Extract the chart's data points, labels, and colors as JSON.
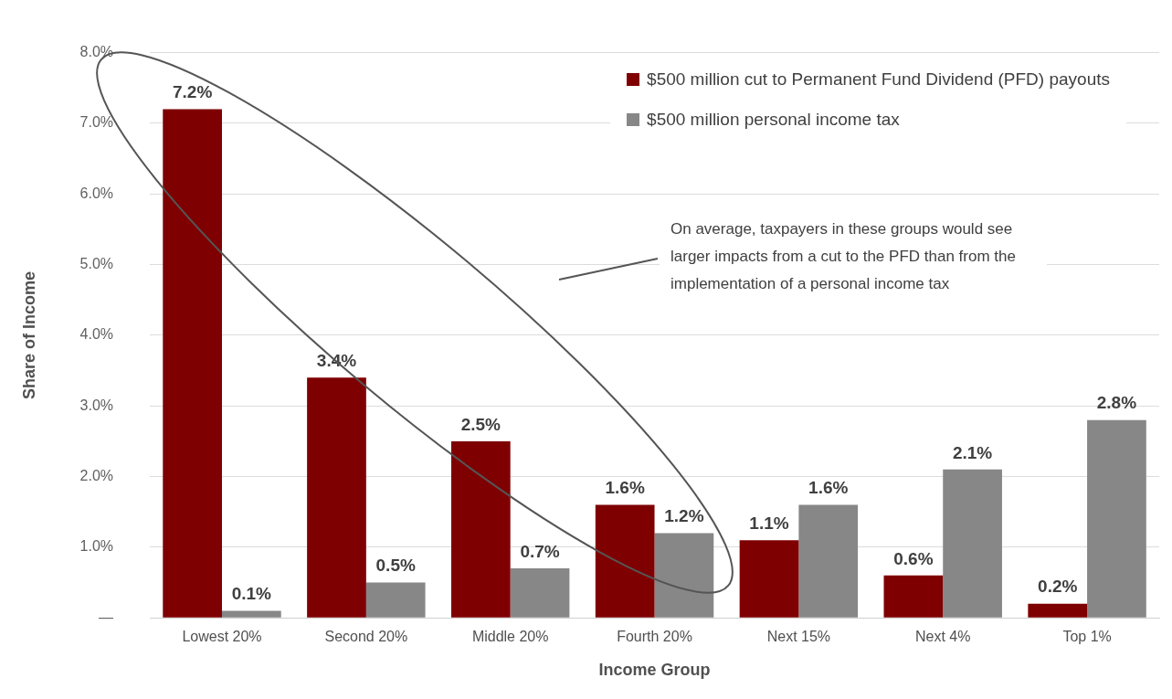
{
  "chart_data": {
    "type": "bar",
    "xlabel": "Income Group",
    "ylabel": "Share of Income",
    "categories": [
      "Lowest 20%",
      "Second 20%",
      "Middle 20%",
      "Fourth 20%",
      "Next 15%",
      "Next 4%",
      "Top 1%"
    ],
    "series": [
      {
        "name": "$500 million cut to Permanent Fund Dividend (PFD) payouts",
        "color": "#7f0000",
        "values": [
          7.2,
          3.4,
          2.5,
          1.6,
          1.1,
          0.6,
          0.2
        ],
        "value_labels": [
          "7.2%",
          "3.4%",
          "2.5%",
          "1.6%",
          "1.1%",
          "0.6%",
          "0.2%"
        ]
      },
      {
        "name": "$500 million personal income tax",
        "color": "#878787",
        "values": [
          0.1,
          0.5,
          0.7,
          1.2,
          1.6,
          2.1,
          2.8
        ],
        "value_labels": [
          "0.1%",
          "0.5%",
          "0.7%",
          "1.2%",
          "1.6%",
          "2.1%",
          "2.8%"
        ]
      }
    ],
    "ylim": [
      0,
      8
    ],
    "yticks": [
      {
        "value": 0,
        "label": "—"
      },
      {
        "value": 1,
        "label": "1.0%"
      },
      {
        "value": 2,
        "label": "2.0%"
      },
      {
        "value": 3,
        "label": "3.0%"
      },
      {
        "value": 4,
        "label": "4.0%"
      },
      {
        "value": 5,
        "label": "5.0%"
      },
      {
        "value": 6,
        "label": "6.0%"
      },
      {
        "value": 7,
        "label": "7.0%"
      },
      {
        "value": 8,
        "label": "8.0%"
      }
    ],
    "grid": "y",
    "legend": "top right",
    "annotations": [
      "On average, taxpayers in these groups would see larger impacts from a cut to the PFD than from the implementation of a personal income tax"
    ]
  }
}
